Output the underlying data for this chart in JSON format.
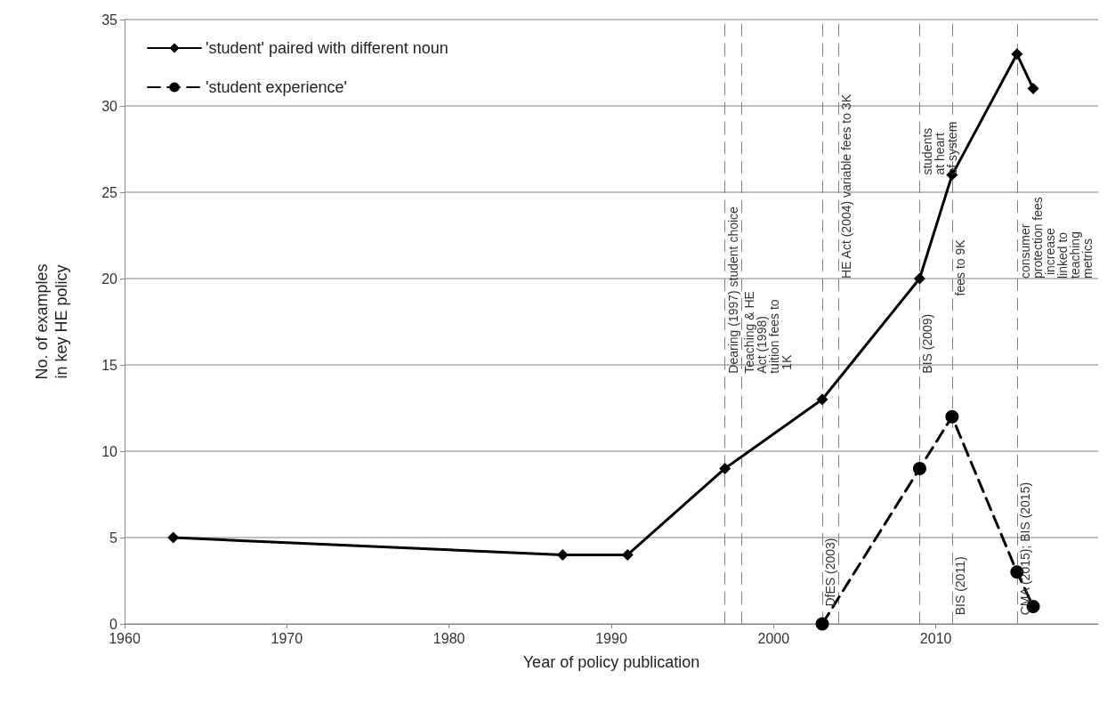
{
  "chart_data": {
    "type": "line",
    "xlabel": "Year of policy publication",
    "ylabel": "No. of examples\nin key HE policy",
    "xlim": [
      1960,
      2020
    ],
    "xticks": [
      1960,
      1970,
      1980,
      1990,
      2000,
      2010
    ],
    "ylim": [
      0,
      35
    ],
    "yticks": [
      0,
      5,
      10,
      15,
      20,
      25,
      30,
      35
    ],
    "grid": "y",
    "legend": "top left",
    "series": [
      {
        "name": "'student' paired with different noun",
        "color": "#000000",
        "marker": "diamond",
        "line_style": "solid",
        "x": [
          1963,
          1987,
          1991,
          1997,
          2003,
          2009,
          2011,
          2015,
          2016
        ],
        "values": [
          5,
          4,
          4,
          9,
          13,
          20,
          26,
          33,
          31
        ]
      },
      {
        "name": "'student experience'",
        "color": "#000000",
        "marker": "circle",
        "line_style": "dashed",
        "x": [
          2003,
          2009,
          2011,
          2015,
          2016
        ],
        "values": [
          0,
          9,
          12,
          3,
          1
        ]
      }
    ],
    "ref_lines": [
      {
        "axis": "x",
        "value": 1997,
        "color": "#808080",
        "line_style": "dashed"
      },
      {
        "axis": "x",
        "value": 1998,
        "color": "#808080",
        "line_style": "dashed"
      },
      {
        "axis": "x",
        "value": 2003,
        "color": "#808080",
        "line_style": "dashed"
      },
      {
        "axis": "x",
        "value": 2004,
        "color": "#808080",
        "line_style": "dashed"
      },
      {
        "axis": "x",
        "value": 2009,
        "color": "#808080",
        "line_style": "dashed"
      },
      {
        "axis": "x",
        "value": 2011,
        "color": "#808080",
        "line_style": "dashed"
      },
      {
        "axis": "x",
        "value": 2015,
        "color": "#808080",
        "line_style": "dashed"
      }
    ],
    "annotations": [
      {
        "text": "Dearing (1997) student choice",
        "x": 1997,
        "y": 14.5
      },
      {
        "text": "Teaching & HE Act (1998) tuition fees to 1K",
        "x": 1998,
        "y": 14.5
      },
      {
        "text": "DfES (2003)",
        "x": 2003,
        "y": 1
      },
      {
        "text": "HE Act (2004) variable fees to 3K",
        "x": 2004,
        "y": 20
      },
      {
        "text": "BIS (2009)",
        "x": 2009,
        "y": 14.5
      },
      {
        "text": "students at heart of system",
        "x": 2009,
        "y": 26
      },
      {
        "text": "BIS (2011)",
        "x": 2011,
        "y": 0.5
      },
      {
        "text": "fees to 9K",
        "x": 2011,
        "y": 19
      },
      {
        "text": "CMA (2015); BIS (2015)",
        "x": 2015,
        "y": 0.5
      },
      {
        "text": "consumer protection fees increase linked to teaching metrics",
        "x": 2015,
        "y": 20
      }
    ]
  }
}
